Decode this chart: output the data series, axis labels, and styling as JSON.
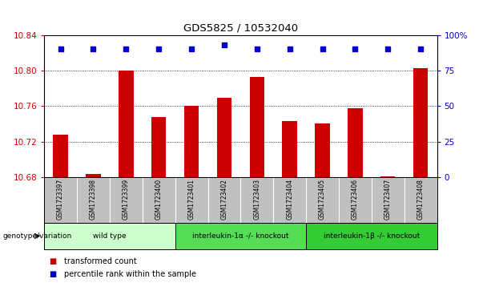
{
  "title": "GDS5825 / 10532040",
  "samples": [
    "GSM1723397",
    "GSM1723398",
    "GSM1723399",
    "GSM1723400",
    "GSM1723401",
    "GSM1723402",
    "GSM1723403",
    "GSM1723404",
    "GSM1723405",
    "GSM1723406",
    "GSM1723407",
    "GSM1723408"
  ],
  "red_values": [
    10.728,
    10.684,
    10.8,
    10.748,
    10.76,
    10.769,
    10.793,
    10.743,
    10.741,
    10.758,
    10.681,
    10.803
  ],
  "blue_values": [
    90,
    90,
    90,
    90,
    90,
    93,
    90,
    90,
    90,
    90,
    90,
    90
  ],
  "ylim_left": [
    10.68,
    10.84
  ],
  "ylim_right": [
    0,
    100
  ],
  "yticks_left": [
    10.68,
    10.72,
    10.76,
    10.8,
    10.84
  ],
  "yticks_right": [
    0,
    25,
    50,
    75,
    100
  ],
  "ytick_labels_right": [
    "0",
    "25",
    "50",
    "75",
    "100%"
  ],
  "groups": [
    {
      "label": "wild type",
      "start": 0,
      "end": 3,
      "color": "#ccffcc"
    },
    {
      "label": "interleukin-1α -/- knockout",
      "start": 4,
      "end": 7,
      "color": "#55dd55"
    },
    {
      "label": "interleukin-1β -/- knockout",
      "start": 8,
      "end": 11,
      "color": "#33cc33"
    }
  ],
  "genotype_label": "genotype/variation",
  "legend_red": "transformed count",
  "legend_blue": "percentile rank within the sample",
  "bar_color": "#cc0000",
  "dot_color": "#0000cc",
  "sample_bg_color": "#c0c0c0",
  "grid_color": "black"
}
